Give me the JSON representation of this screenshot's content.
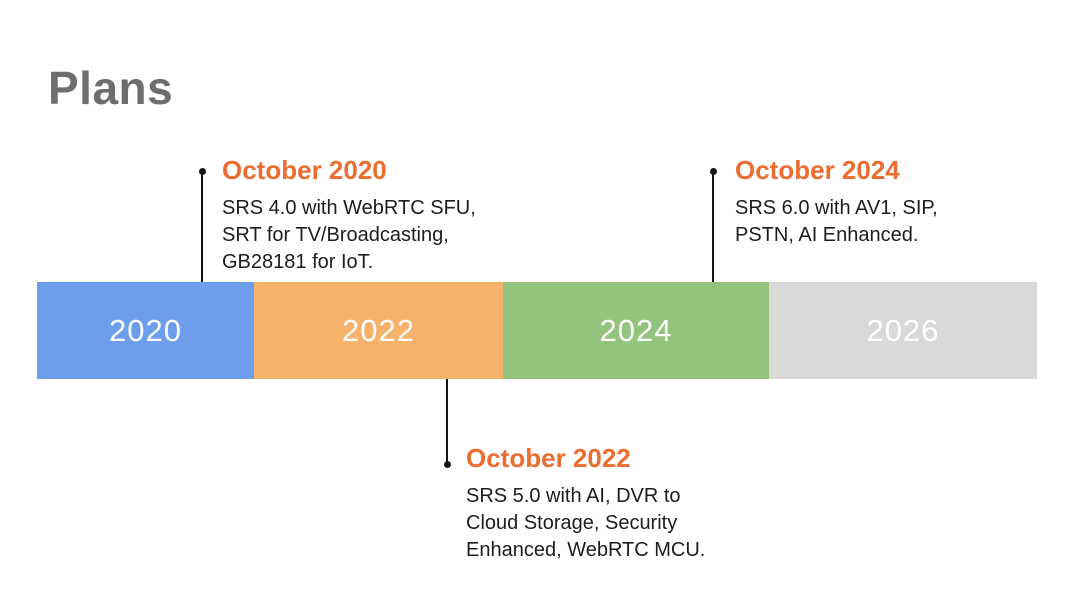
{
  "slide": {
    "title": "Plans",
    "title_color": "#6E6E6E",
    "background": "#FFFFFF"
  },
  "timeline": {
    "label_color": "#FFFFFF",
    "segments": [
      {
        "label": "2020",
        "color": "#6D9EEB"
      },
      {
        "label": "2022",
        "color": "#F6B26B"
      },
      {
        "label": "2024",
        "color": "#93C47D"
      },
      {
        "label": "2026",
        "color": "#D9D9D9"
      }
    ]
  },
  "milestones": [
    {
      "title": "October 2020",
      "side": "above",
      "lines": [
        "SRS 4.0 with WebRTC SFU,",
        "SRT for TV/Broadcasting,",
        "GB28181 for IoT."
      ]
    },
    {
      "title": "October 2022",
      "side": "below",
      "lines": [
        "SRS 5.0 with AI, DVR to",
        "Cloud Storage, Security",
        "Enhanced, WebRTC MCU."
      ]
    },
    {
      "title": "October 2024",
      "side": "above",
      "lines": [
        "SRS 6.0 with AV1, SIP,",
        "PSTN, AI Enhanced."
      ]
    }
  ],
  "colors": {
    "accent_orange": "#ED6C2F",
    "title_gray": "#6E6E6E",
    "body_text": "#1D1D1D",
    "connector_black": "#141414"
  }
}
